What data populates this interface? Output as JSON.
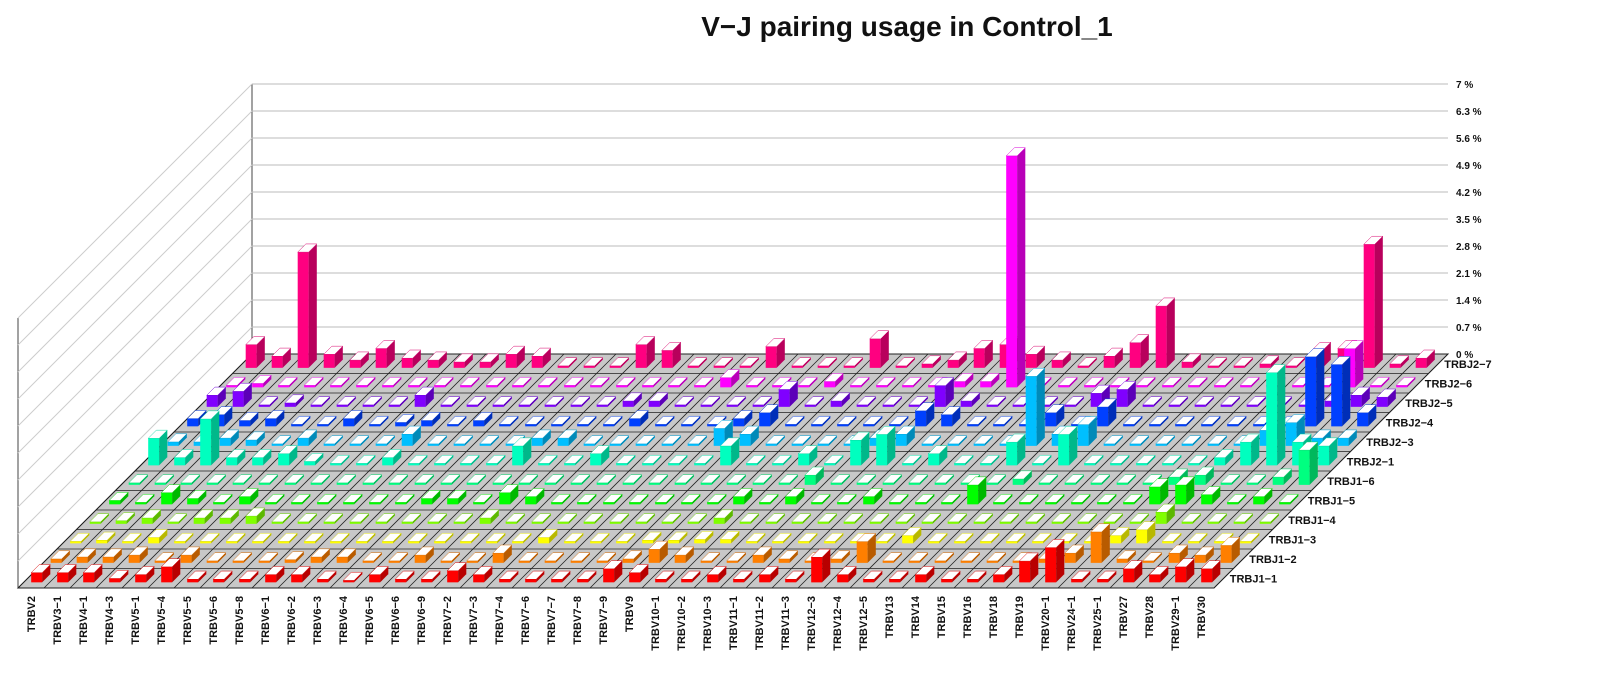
{
  "chart_data": {
    "type": "bar",
    "subtype": "3d-bar",
    "title": "V−J pairing usage in Control_1",
    "xlabel": "",
    "ylabel": "",
    "zlabel": "",
    "x_categories": [
      "TRBV2",
      "TRBV3−1",
      "TRBV4−1",
      "TRBV4−3",
      "TRBV5−1",
      "TRBV5−4",
      "TRBV5−5",
      "TRBV5−6",
      "TRBV5−8",
      "TRBV6−1",
      "TRBV6−2",
      "TRBV6−3",
      "TRBV6−4",
      "TRBV6−5",
      "TRBV6−6",
      "TRBV6−9",
      "TRBV7−2",
      "TRBV7−3",
      "TRBV7−4",
      "TRBV7−6",
      "TRBV7−7",
      "TRBV7−8",
      "TRBV7−9",
      "TRBV9",
      "TRBV10−1",
      "TRBV10−2",
      "TRBV10−3",
      "TRBV11−1",
      "TRBV11−2",
      "TRBV11−3",
      "TRBV12−3",
      "TRBV12−4",
      "TRBV12−5",
      "TRBV13",
      "TRBV14",
      "TRBV15",
      "TRBV16",
      "TRBV18",
      "TRBV19",
      "TRBV20−1",
      "TRBV24−1",
      "TRBV25−1",
      "TRBV27",
      "TRBV28",
      "TRBV29−1",
      "TRBV30"
    ],
    "y_categories": [
      "TRBJ1−1",
      "TRBJ1−2",
      "TRBJ1−3",
      "TRBJ1−4",
      "TRBJ1−5",
      "TRBJ1−6",
      "TRBJ2−1",
      "TRBJ2−3",
      "TRBJ2−4",
      "TRBJ2−5",
      "TRBJ2−6",
      "TRBJ2−7"
    ],
    "zlim": [
      0,
      7
    ],
    "z_ticks": [
      "0 %",
      "0.7 %",
      "1.4 %",
      "2.1 %",
      "2.8 %",
      "3.5 %",
      "4.2 %",
      "4.9 %",
      "5.6 %",
      "6.3 %",
      "7 %"
    ],
    "series_colors": [
      "#ff0000",
      "#ff7f00",
      "#ffff00",
      "#80ff00",
      "#00ff00",
      "#00ff80",
      "#00ffbf",
      "#00bfff",
      "#0040ff",
      "#8000ff",
      "#ff00ff",
      "#ff0080"
    ],
    "grid": true,
    "legend": "none",
    "values": [
      [
        0.25,
        0.25,
        0.25,
        0.1,
        0.2,
        0.4,
        0.08,
        0.08,
        0.08,
        0.2,
        0.2,
        0.08,
        0.05,
        0.2,
        0.08,
        0.08,
        0.3,
        0.2,
        0.08,
        0.08,
        0.08,
        0.08,
        0.35,
        0.25,
        0.08,
        0.08,
        0.2,
        0.08,
        0.2,
        0.08,
        0.65,
        0.2,
        0.08,
        0.08,
        0.2,
        0.08,
        0.08,
        0.2,
        0.55,
        0.9,
        0.08,
        0.08,
        0.35,
        0.2,
        0.4,
        0.35
      ],
      [
        0.1,
        0.15,
        0.15,
        0.2,
        0.05,
        0.2,
        0.05,
        0.05,
        0.05,
        0.08,
        0.15,
        0.15,
        0.05,
        0.05,
        0.2,
        0.05,
        0.05,
        0.25,
        0.05,
        0.05,
        0.05,
        0.05,
        0.1,
        0.35,
        0.2,
        0.05,
        0.05,
        0.2,
        0.1,
        0.05,
        0.1,
        0.55,
        0.05,
        0.05,
        0.05,
        0.05,
        0.05,
        0.05,
        0.1,
        0.25,
        0.8,
        0.1,
        0.05,
        0.25,
        0.2,
        0.45
      ],
      [
        0.05,
        0.08,
        0.05,
        0.15,
        0.05,
        0.05,
        0.05,
        0.05,
        0.05,
        0.05,
        0.05,
        0.05,
        0.05,
        0.05,
        0.05,
        0.05,
        0.05,
        0.05,
        0.15,
        0.05,
        0.05,
        0.05,
        0.08,
        0.08,
        0.1,
        0.1,
        0.05,
        0.05,
        0.05,
        0.05,
        0.05,
        0.05,
        0.2,
        0.05,
        0.05,
        0.05,
        0.05,
        0.05,
        0.05,
        0.05,
        0.2,
        0.35,
        0.05,
        0.05,
        0.05,
        0.05
      ],
      [
        0.05,
        0.08,
        0.15,
        0.05,
        0.15,
        0.15,
        0.2,
        0.05,
        0.05,
        0.05,
        0.05,
        0.05,
        0.05,
        0.05,
        0.05,
        0.15,
        0.05,
        0.05,
        0.05,
        0.05,
        0.05,
        0.05,
        0.05,
        0.05,
        0.15,
        0.05,
        0.05,
        0.05,
        0.05,
        0.05,
        0.05,
        0.05,
        0.05,
        0.05,
        0.05,
        0.05,
        0.05,
        0.05,
        0.05,
        0.05,
        0.05,
        0.3,
        0.05,
        0.05,
        0.05,
        0.05
      ],
      [
        0.1,
        0.05,
        0.3,
        0.15,
        0.05,
        0.2,
        0.05,
        0.05,
        0.05,
        0.05,
        0.05,
        0.05,
        0.15,
        0.15,
        0.05,
        0.3,
        0.2,
        0.05,
        0.05,
        0.05,
        0.05,
        0.05,
        0.05,
        0.05,
        0.2,
        0.05,
        0.2,
        0.05,
        0.05,
        0.2,
        0.05,
        0.05,
        0.05,
        0.5,
        0.05,
        0.05,
        0.05,
        0.05,
        0.05,
        0.05,
        0.45,
        0.5,
        0.25,
        0.05,
        0.2,
        0.05
      ],
      [
        0.05,
        0.05,
        0.05,
        0.05,
        0.05,
        0.05,
        0.05,
        0.05,
        0.05,
        0.05,
        0.05,
        0.05,
        0.05,
        0.05,
        0.05,
        0.05,
        0.05,
        0.05,
        0.05,
        0.05,
        0.05,
        0.05,
        0.05,
        0.05,
        0.05,
        0.05,
        0.25,
        0.05,
        0.05,
        0.05,
        0.05,
        0.05,
        0.05,
        0.05,
        0.15,
        0.05,
        0.05,
        0.05,
        0.05,
        0.05,
        0.2,
        0.25,
        0.05,
        0.05,
        0.2,
        0.9
      ],
      [
        0.7,
        0.2,
        1.2,
        0.2,
        0.2,
        0.3,
        0.1,
        0.05,
        0.05,
        0.2,
        0.05,
        0.05,
        0.05,
        0.05,
        0.5,
        0.05,
        0.05,
        0.3,
        0.05,
        0.05,
        0.05,
        0.05,
        0.5,
        0.05,
        0.05,
        0.3,
        0.05,
        0.65,
        0.8,
        0.05,
        0.3,
        0.05,
        0.05,
        0.6,
        0.05,
        0.8,
        0.05,
        0.05,
        0.05,
        0.05,
        0.05,
        0.2,
        0.6,
        2.4,
        0.6,
        0.5
      ],
      [
        0.1,
        0.1,
        0.2,
        0.15,
        0.05,
        0.2,
        0.05,
        0.05,
        0.05,
        0.3,
        0.05,
        0.05,
        0.05,
        0.05,
        0.2,
        0.2,
        0.05,
        0.05,
        0.05,
        0.05,
        0.05,
        0.45,
        0.3,
        0.05,
        0.05,
        0.05,
        0.05,
        0.2,
        0.3,
        0.05,
        0.05,
        0.05,
        0.05,
        1.8,
        0.3,
        0.55,
        0.05,
        0.05,
        0.05,
        0.05,
        0.05,
        0.05,
        0.4,
        0.6,
        0.2,
        0.2
      ],
      [
        0.2,
        0.3,
        0.15,
        0.2,
        0.05,
        0.05,
        0.2,
        0.05,
        0.1,
        0.15,
        0.05,
        0.15,
        0.05,
        0.05,
        0.05,
        0.05,
        0.05,
        0.2,
        0.05,
        0.05,
        0.05,
        0.2,
        0.35,
        0.05,
        0.05,
        0.05,
        0.05,
        0.05,
        0.4,
        0.3,
        0.05,
        0.05,
        0.05,
        0.35,
        0.05,
        0.5,
        0.05,
        0.05,
        0.05,
        0.05,
        0.05,
        0.05,
        0.05,
        1.8,
        1.6,
        0.35
      ],
      [
        0.3,
        0.4,
        0.05,
        0.1,
        0.05,
        0.05,
        0.05,
        0.05,
        0.3,
        0.05,
        0.05,
        0.05,
        0.05,
        0.05,
        0.05,
        0.05,
        0.15,
        0.15,
        0.05,
        0.05,
        0.05,
        0.05,
        0.45,
        0.05,
        0.15,
        0.05,
        0.05,
        0.05,
        0.55,
        0.15,
        0.05,
        0.05,
        0.05,
        0.05,
        0.35,
        0.45,
        0.05,
        0.05,
        0.05,
        0.05,
        0.05,
        0.05,
        0.05,
        0.15,
        0.3,
        0.25
      ],
      [
        0.05,
        0.1,
        0.05,
        0.05,
        0.05,
        0.05,
        0.05,
        0.05,
        0.05,
        0.05,
        0.05,
        0.05,
        0.05,
        0.05,
        0.05,
        0.05,
        0.05,
        0.05,
        0.05,
        0.25,
        0.05,
        0.05,
        0.05,
        0.15,
        0.05,
        0.05,
        0.05,
        0.05,
        0.15,
        0.15,
        6.0,
        0.05,
        0.05,
        0.05,
        0.05,
        0.05,
        0.05,
        0.05,
        0.05,
        0.05,
        0.05,
        0.05,
        0.05,
        1.0,
        0.05,
        0.05
      ],
      [
        0.6,
        0.3,
        3.0,
        0.35,
        0.2,
        0.5,
        0.25,
        0.2,
        0.15,
        0.15,
        0.35,
        0.3,
        0.05,
        0.05,
        0.05,
        0.6,
        0.45,
        0.05,
        0.05,
        0.05,
        0.55,
        0.05,
        0.05,
        0.05,
        0.75,
        0.05,
        0.1,
        0.2,
        0.5,
        0.6,
        0.35,
        0.2,
        0.05,
        0.3,
        0.65,
        1.6,
        0.15,
        0.05,
        0.05,
        0.1,
        0.05,
        0.45,
        0.5,
        3.2,
        0.1,
        0.25
      ]
    ]
  }
}
